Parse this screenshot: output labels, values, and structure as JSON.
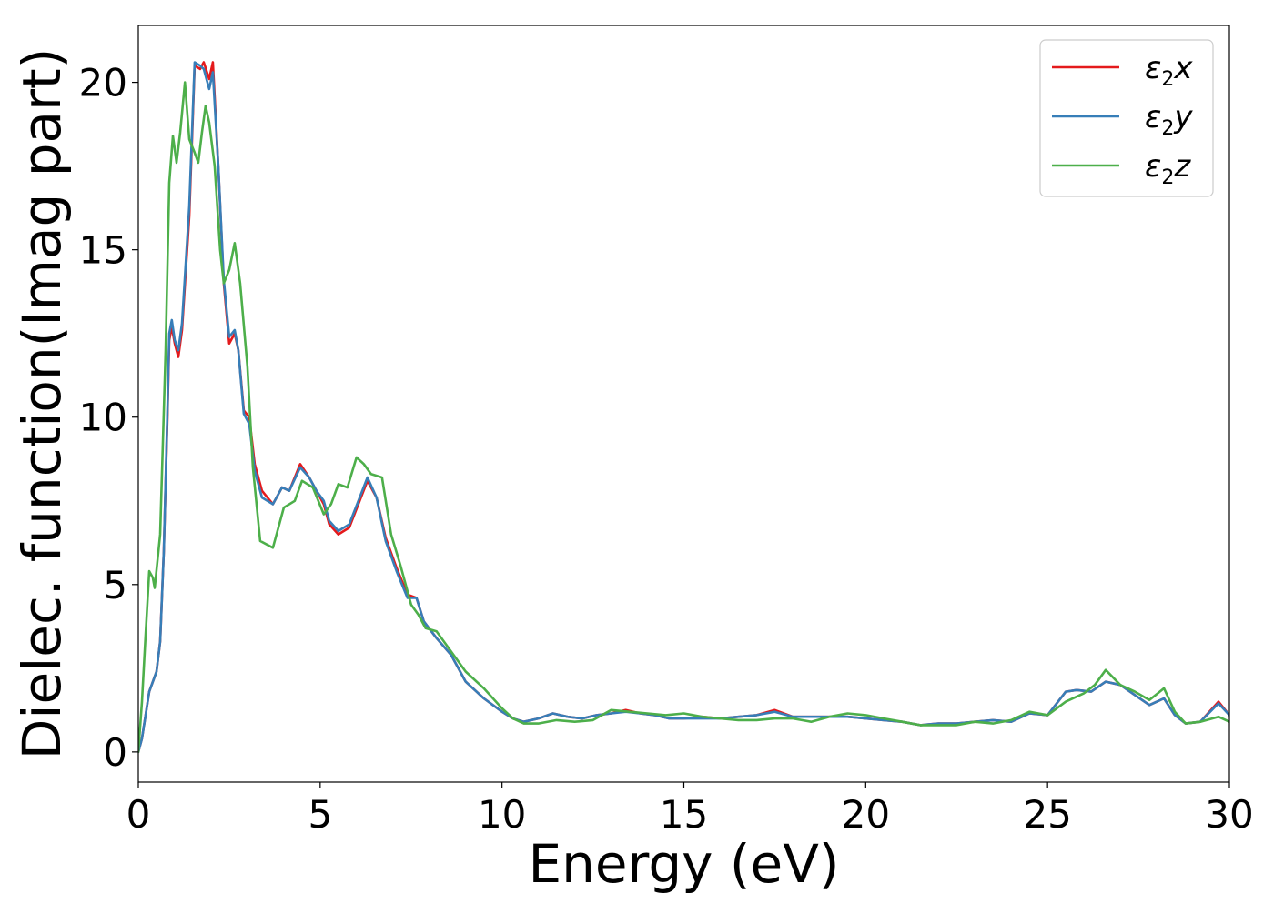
{
  "chart_data": {
    "type": "line",
    "title": "",
    "xlabel": "Energy (eV)",
    "ylabel": "Dielec. function(Imag part)",
    "xlim": [
      0,
      30
    ],
    "ylim": [
      -0.9,
      21.7
    ],
    "xticks": [
      0,
      5,
      10,
      15,
      20,
      25,
      30
    ],
    "yticks": [
      0,
      5,
      10,
      15,
      20
    ],
    "grid": false,
    "legend_position": "top-right",
    "series": [
      {
        "name": "ε2x",
        "legend_base": "ε",
        "legend_sub": "2",
        "legend_tail": "x",
        "color": "#e41a1c",
        "points": [
          [
            0,
            0
          ],
          [
            0.1,
            0.4
          ],
          [
            0.2,
            1.1
          ],
          [
            0.3,
            1.8
          ],
          [
            0.5,
            2.4
          ],
          [
            0.6,
            3.3
          ],
          [
            0.7,
            6.0
          ],
          [
            0.8,
            10.0
          ],
          [
            0.85,
            12.3
          ],
          [
            0.92,
            12.7
          ],
          [
            1.0,
            12.2
          ],
          [
            1.1,
            11.8
          ],
          [
            1.2,
            12.6
          ],
          [
            1.4,
            16.0
          ],
          [
            1.55,
            20.5
          ],
          [
            1.7,
            20.4
          ],
          [
            1.8,
            20.6
          ],
          [
            1.95,
            20.1
          ],
          [
            2.05,
            20.6
          ],
          [
            2.2,
            17.5
          ],
          [
            2.35,
            14.0
          ],
          [
            2.5,
            12.2
          ],
          [
            2.65,
            12.5
          ],
          [
            2.75,
            12.0
          ],
          [
            2.9,
            10.2
          ],
          [
            3.05,
            10.0
          ],
          [
            3.2,
            8.6
          ],
          [
            3.4,
            7.8
          ],
          [
            3.7,
            7.4
          ],
          [
            3.95,
            7.9
          ],
          [
            4.15,
            7.8
          ],
          [
            4.45,
            8.6
          ],
          [
            4.7,
            8.2
          ],
          [
            4.9,
            7.8
          ],
          [
            5.1,
            7.4
          ],
          [
            5.25,
            6.8
          ],
          [
            5.5,
            6.5
          ],
          [
            5.8,
            6.7
          ],
          [
            6.05,
            7.4
          ],
          [
            6.3,
            8.1
          ],
          [
            6.55,
            7.6
          ],
          [
            6.8,
            6.4
          ],
          [
            7.1,
            5.5
          ],
          [
            7.4,
            4.7
          ],
          [
            7.65,
            4.6
          ],
          [
            7.85,
            3.9
          ],
          [
            8.2,
            3.4
          ],
          [
            8.6,
            2.9
          ],
          [
            9.0,
            2.1
          ],
          [
            9.5,
            1.6
          ],
          [
            10.0,
            1.2
          ],
          [
            10.3,
            1.0
          ],
          [
            10.6,
            0.9
          ],
          [
            11.0,
            1.0
          ],
          [
            11.4,
            1.15
          ],
          [
            11.8,
            1.05
          ],
          [
            12.2,
            1.0
          ],
          [
            12.6,
            1.1
          ],
          [
            13.0,
            1.15
          ],
          [
            13.4,
            1.25
          ],
          [
            13.8,
            1.15
          ],
          [
            14.2,
            1.1
          ],
          [
            14.6,
            1.0
          ],
          [
            15.0,
            1.0
          ],
          [
            15.5,
            1.05
          ],
          [
            16.0,
            1.0
          ],
          [
            16.5,
            1.05
          ],
          [
            17.0,
            1.1
          ],
          [
            17.5,
            1.25
          ],
          [
            18.0,
            1.05
          ],
          [
            18.5,
            1.05
          ],
          [
            19.0,
            1.05
          ],
          [
            19.5,
            1.05
          ],
          [
            20.0,
            1.0
          ],
          [
            20.5,
            0.95
          ],
          [
            21.0,
            0.9
          ],
          [
            21.5,
            0.8
          ],
          [
            22.0,
            0.85
          ],
          [
            22.5,
            0.85
          ],
          [
            23.0,
            0.9
          ],
          [
            23.5,
            0.95
          ],
          [
            24.0,
            0.9
          ],
          [
            24.5,
            1.15
          ],
          [
            25.0,
            1.1
          ],
          [
            25.5,
            1.8
          ],
          [
            25.8,
            1.85
          ],
          [
            26.2,
            1.8
          ],
          [
            26.6,
            2.1
          ],
          [
            27.0,
            2.0
          ],
          [
            27.4,
            1.7
          ],
          [
            27.8,
            1.4
          ],
          [
            28.2,
            1.6
          ],
          [
            28.5,
            1.1
          ],
          [
            28.8,
            0.85
          ],
          [
            29.2,
            0.9
          ],
          [
            29.7,
            1.5
          ],
          [
            30.0,
            1.1
          ]
        ]
      },
      {
        "name": "ε2y",
        "legend_base": "ε",
        "legend_sub": "2",
        "legend_tail": "y",
        "color": "#377eb8",
        "points": [
          [
            0,
            0
          ],
          [
            0.1,
            0.4
          ],
          [
            0.2,
            1.1
          ],
          [
            0.3,
            1.8
          ],
          [
            0.5,
            2.4
          ],
          [
            0.6,
            3.3
          ],
          [
            0.7,
            6.0
          ],
          [
            0.8,
            10.2
          ],
          [
            0.85,
            12.5
          ],
          [
            0.92,
            12.9
          ],
          [
            1.0,
            12.3
          ],
          [
            1.1,
            12.0
          ],
          [
            1.2,
            12.8
          ],
          [
            1.4,
            16.3
          ],
          [
            1.55,
            20.6
          ],
          [
            1.7,
            20.5
          ],
          [
            1.8,
            20.4
          ],
          [
            1.95,
            19.8
          ],
          [
            2.05,
            20.3
          ],
          [
            2.2,
            17.5
          ],
          [
            2.35,
            14.1
          ],
          [
            2.5,
            12.4
          ],
          [
            2.65,
            12.6
          ],
          [
            2.75,
            12.0
          ],
          [
            2.9,
            10.1
          ],
          [
            3.05,
            9.8
          ],
          [
            3.2,
            8.4
          ],
          [
            3.4,
            7.6
          ],
          [
            3.7,
            7.4
          ],
          [
            3.95,
            7.9
          ],
          [
            4.15,
            7.8
          ],
          [
            4.45,
            8.5
          ],
          [
            4.7,
            8.2
          ],
          [
            4.9,
            7.8
          ],
          [
            5.1,
            7.5
          ],
          [
            5.25,
            6.9
          ],
          [
            5.5,
            6.6
          ],
          [
            5.8,
            6.8
          ],
          [
            6.05,
            7.5
          ],
          [
            6.3,
            8.2
          ],
          [
            6.55,
            7.6
          ],
          [
            6.8,
            6.3
          ],
          [
            7.1,
            5.4
          ],
          [
            7.4,
            4.6
          ],
          [
            7.65,
            4.6
          ],
          [
            7.85,
            3.9
          ],
          [
            8.2,
            3.4
          ],
          [
            8.6,
            2.9
          ],
          [
            9.0,
            2.1
          ],
          [
            9.5,
            1.6
          ],
          [
            10.0,
            1.2
          ],
          [
            10.3,
            1.0
          ],
          [
            10.6,
            0.9
          ],
          [
            11.0,
            1.0
          ],
          [
            11.4,
            1.15
          ],
          [
            11.8,
            1.05
          ],
          [
            12.2,
            1.0
          ],
          [
            12.6,
            1.1
          ],
          [
            13.0,
            1.15
          ],
          [
            13.4,
            1.2
          ],
          [
            13.8,
            1.15
          ],
          [
            14.2,
            1.1
          ],
          [
            14.6,
            1.0
          ],
          [
            15.0,
            1.0
          ],
          [
            15.5,
            1.0
          ],
          [
            16.0,
            1.0
          ],
          [
            16.5,
            1.05
          ],
          [
            17.0,
            1.1
          ],
          [
            17.5,
            1.2
          ],
          [
            18.0,
            1.05
          ],
          [
            18.5,
            1.05
          ],
          [
            19.0,
            1.05
          ],
          [
            19.5,
            1.05
          ],
          [
            20.0,
            1.0
          ],
          [
            20.5,
            0.95
          ],
          [
            21.0,
            0.9
          ],
          [
            21.5,
            0.8
          ],
          [
            22.0,
            0.85
          ],
          [
            22.5,
            0.85
          ],
          [
            23.0,
            0.9
          ],
          [
            23.5,
            0.95
          ],
          [
            24.0,
            0.9
          ],
          [
            24.5,
            1.15
          ],
          [
            25.0,
            1.1
          ],
          [
            25.5,
            1.8
          ],
          [
            25.8,
            1.85
          ],
          [
            26.2,
            1.8
          ],
          [
            26.6,
            2.1
          ],
          [
            27.0,
            2.0
          ],
          [
            27.4,
            1.7
          ],
          [
            27.8,
            1.4
          ],
          [
            28.2,
            1.6
          ],
          [
            28.5,
            1.1
          ],
          [
            28.8,
            0.85
          ],
          [
            29.2,
            0.9
          ],
          [
            29.7,
            1.45
          ],
          [
            30.0,
            1.1
          ]
        ]
      },
      {
        "name": "ε2z",
        "legend_base": "ε",
        "legend_sub": "2",
        "legend_tail": "z",
        "color": "#4daf4a",
        "points": [
          [
            0,
            0
          ],
          [
            0.1,
            1.5
          ],
          [
            0.2,
            3.5
          ],
          [
            0.3,
            5.4
          ],
          [
            0.4,
            5.2
          ],
          [
            0.45,
            4.9
          ],
          [
            0.6,
            6.5
          ],
          [
            0.75,
            12.0
          ],
          [
            0.85,
            17.0
          ],
          [
            0.95,
            18.4
          ],
          [
            1.05,
            17.6
          ],
          [
            1.15,
            18.5
          ],
          [
            1.28,
            20.0
          ],
          [
            1.4,
            18.3
          ],
          [
            1.55,
            17.9
          ],
          [
            1.65,
            17.6
          ],
          [
            1.75,
            18.5
          ],
          [
            1.85,
            19.3
          ],
          [
            1.95,
            18.8
          ],
          [
            2.1,
            17.5
          ],
          [
            2.25,
            15.0
          ],
          [
            2.35,
            14.0
          ],
          [
            2.5,
            14.4
          ],
          [
            2.65,
            15.2
          ],
          [
            2.8,
            14.0
          ],
          [
            3.0,
            11.5
          ],
          [
            3.15,
            8.5
          ],
          [
            3.35,
            6.3
          ],
          [
            3.7,
            6.1
          ],
          [
            4.0,
            7.3
          ],
          [
            4.3,
            7.5
          ],
          [
            4.5,
            8.1
          ],
          [
            4.8,
            7.9
          ],
          [
            5.1,
            7.1
          ],
          [
            5.3,
            7.4
          ],
          [
            5.5,
            8.0
          ],
          [
            5.75,
            7.9
          ],
          [
            6.0,
            8.8
          ],
          [
            6.2,
            8.6
          ],
          [
            6.4,
            8.3
          ],
          [
            6.7,
            8.2
          ],
          [
            6.95,
            6.5
          ],
          [
            7.2,
            5.6
          ],
          [
            7.5,
            4.4
          ],
          [
            7.7,
            4.1
          ],
          [
            7.9,
            3.7
          ],
          [
            8.2,
            3.6
          ],
          [
            8.6,
            3.0
          ],
          [
            9.0,
            2.4
          ],
          [
            9.5,
            1.9
          ],
          [
            10.0,
            1.3
          ],
          [
            10.3,
            1.0
          ],
          [
            10.6,
            0.85
          ],
          [
            11.0,
            0.85
          ],
          [
            11.5,
            0.95
          ],
          [
            12.0,
            0.9
          ],
          [
            12.5,
            0.95
          ],
          [
            13.0,
            1.25
          ],
          [
            13.5,
            1.2
          ],
          [
            14.0,
            1.15
          ],
          [
            14.5,
            1.1
          ],
          [
            15.0,
            1.15
          ],
          [
            15.5,
            1.05
          ],
          [
            16.0,
            1.0
          ],
          [
            16.5,
            0.95
          ],
          [
            17.0,
            0.95
          ],
          [
            17.5,
            1.0
          ],
          [
            18.0,
            1.0
          ],
          [
            18.5,
            0.9
          ],
          [
            19.0,
            1.05
          ],
          [
            19.5,
            1.15
          ],
          [
            20.0,
            1.1
          ],
          [
            20.5,
            1.0
          ],
          [
            21.0,
            0.9
          ],
          [
            21.5,
            0.8
          ],
          [
            22.0,
            0.8
          ],
          [
            22.5,
            0.8
          ],
          [
            23.0,
            0.9
          ],
          [
            23.5,
            0.85
          ],
          [
            24.0,
            0.95
          ],
          [
            24.5,
            1.2
          ],
          [
            25.0,
            1.1
          ],
          [
            25.5,
            1.5
          ],
          [
            26.0,
            1.75
          ],
          [
            26.3,
            2.0
          ],
          [
            26.6,
            2.45
          ],
          [
            27.0,
            2.0
          ],
          [
            27.4,
            1.8
          ],
          [
            27.8,
            1.55
          ],
          [
            28.2,
            1.9
          ],
          [
            28.5,
            1.2
          ],
          [
            28.8,
            0.85
          ],
          [
            29.2,
            0.9
          ],
          [
            29.7,
            1.05
          ],
          [
            30.0,
            0.9
          ]
        ]
      }
    ]
  }
}
